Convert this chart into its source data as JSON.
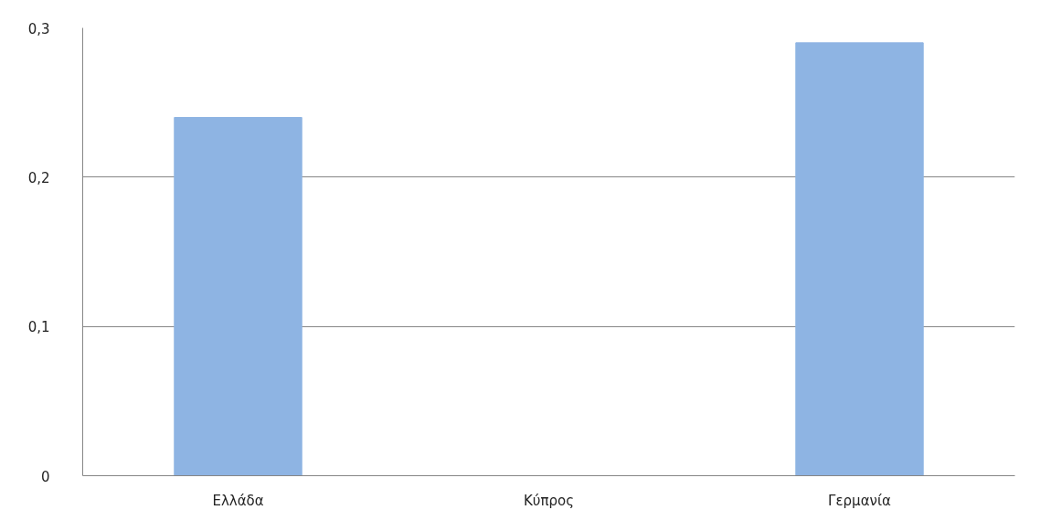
{
  "chart_data": {
    "type": "bar",
    "categories": [
      "Ελλάδα",
      "Κύπρος",
      "Γερμανία"
    ],
    "values": [
      0.24,
      0,
      0.29
    ],
    "color": "#8eb4e3",
    "ylim": [
      0,
      0.3
    ],
    "yticks": [
      {
        "value": 0,
        "label": "0"
      },
      {
        "value": 0.1,
        "label": "0,1"
      },
      {
        "value": 0.2,
        "label": "0,2"
      },
      {
        "value": 0.3,
        "label": "0,3"
      }
    ],
    "grid": "y"
  }
}
